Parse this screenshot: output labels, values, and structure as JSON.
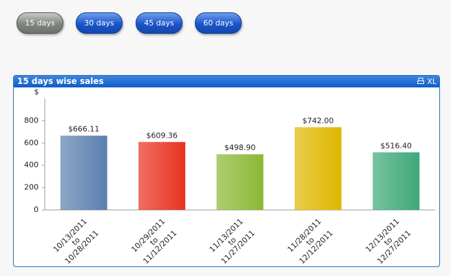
{
  "buttons": [
    "15 days",
    "30 days",
    "45 days",
    "60 days"
  ],
  "panel": {
    "title": "15 days wise sales",
    "export": "XL"
  },
  "chart_data": {
    "type": "bar",
    "y_label": "$",
    "categories": [
      [
        "10/13/2011",
        "to",
        "10/28/2011"
      ],
      [
        "10/29/2011",
        "to",
        "11/12/2011"
      ],
      [
        "11/13/2011",
        "to",
        "11/27/2011"
      ],
      [
        "11/28/2011",
        "to",
        "12/12/2011"
      ],
      [
        "12/13/2011",
        "to",
        "12/27/2011"
      ]
    ],
    "values": [
      666.11,
      609.36,
      498.9,
      742.0,
      516.4
    ],
    "value_labels": [
      "$666.11",
      "$609.36",
      "$498.90",
      "$742.00",
      "$516.40"
    ],
    "colors": [
      "#5b80ae",
      "#e8321e",
      "#8bb833",
      "#dfb700",
      "#3ea878"
    ],
    "ylim": [
      0,
      1000
    ],
    "yticks": [
      0,
      200,
      400,
      600,
      800
    ],
    "grid": false
  }
}
